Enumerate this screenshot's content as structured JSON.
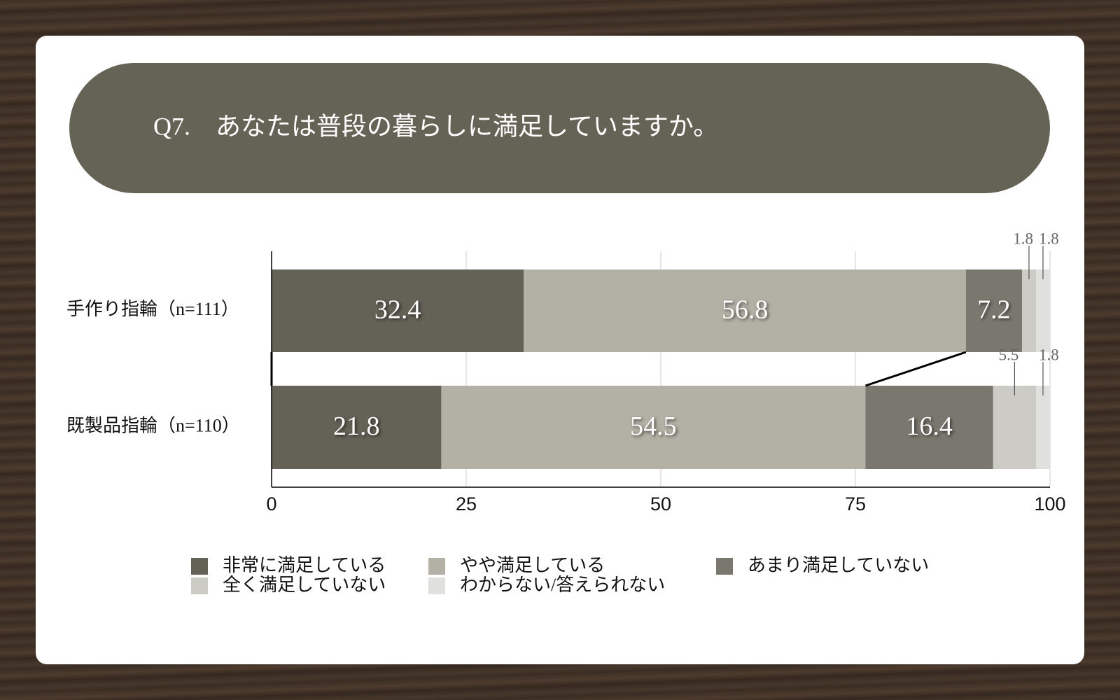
{
  "chart_data": {
    "type": "stacked-bar-horizontal",
    "title": "Q7.　あなたは普段の暮らしに満足していますか。",
    "categories": [
      "手作り指輪（n=111）",
      "既製品指輪（n=110）"
    ],
    "series": [
      {
        "name": "非常に満足している",
        "color": "#646157",
        "values": [
          32.4,
          21.8
        ]
      },
      {
        "name": "やや満足している",
        "color": "#b3b0a5",
        "values": [
          56.8,
          54.5
        ]
      },
      {
        "name": "あまり満足していない",
        "color": "#7a776e",
        "values": [
          7.2,
          16.4
        ]
      },
      {
        "name": "全く満足していない",
        "color": "#cccbc6",
        "values": [
          1.8,
          5.5
        ]
      },
      {
        "name": "わからない/答えられない",
        "color": "#e0e0dd",
        "values": [
          1.8,
          1.8
        ]
      }
    ],
    "xlim": [
      0,
      100
    ],
    "xticks": [
      0,
      25,
      50,
      75,
      100
    ],
    "grid": true
  }
}
